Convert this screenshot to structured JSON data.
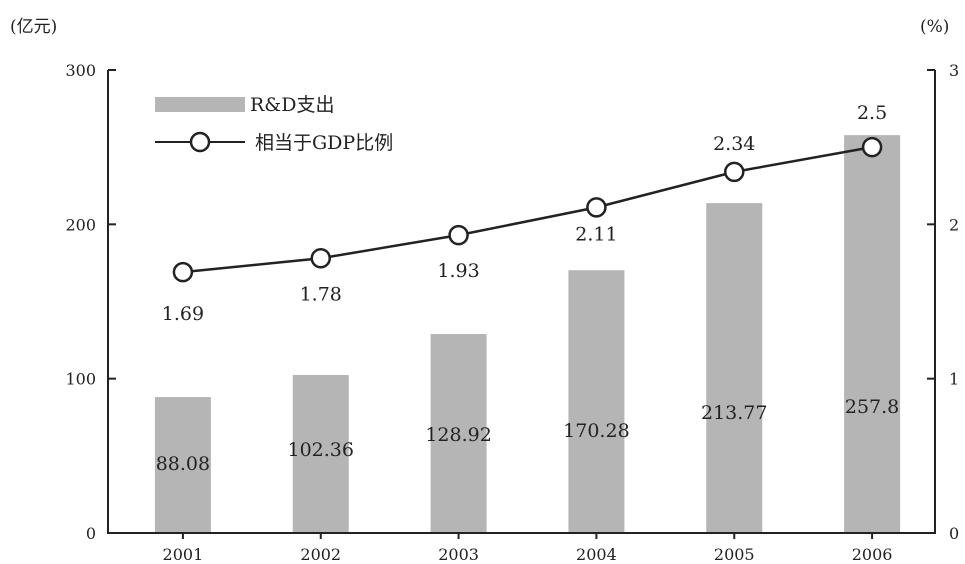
{
  "chart_data": {
    "type": "bar",
    "categories": [
      "2001",
      "2002",
      "2003",
      "2004",
      "2005",
      "2006"
    ],
    "series": [
      {
        "name": "R&D支出",
        "type": "bar",
        "axis": "left",
        "values": [
          88.08,
          102.36,
          128.92,
          170.28,
          213.77,
          257.8
        ],
        "labels": [
          "88.08",
          "102.36",
          "128.92",
          "170.28",
          "213.77",
          "257.8"
        ],
        "color": "#b5b5b5"
      },
      {
        "name": "相当于GDP比例",
        "type": "line",
        "axis": "right",
        "values": [
          1.69,
          1.78,
          1.93,
          2.11,
          2.34,
          2.5
        ],
        "labels": [
          "1.69",
          "1.78",
          "1.93",
          "2.11",
          "2.34",
          "2.5"
        ],
        "color": "#222222"
      }
    ],
    "y_left": {
      "unit": "(亿元)",
      "ylim": [
        0,
        300
      ],
      "ticks": [
        "0",
        "100",
        "200",
        "300"
      ]
    },
    "y_right": {
      "unit": "(%)",
      "ylim": [
        0,
        3
      ],
      "ticks": [
        "0",
        "1",
        "2",
        "3"
      ]
    },
    "legend": "top-left",
    "grid": false
  }
}
